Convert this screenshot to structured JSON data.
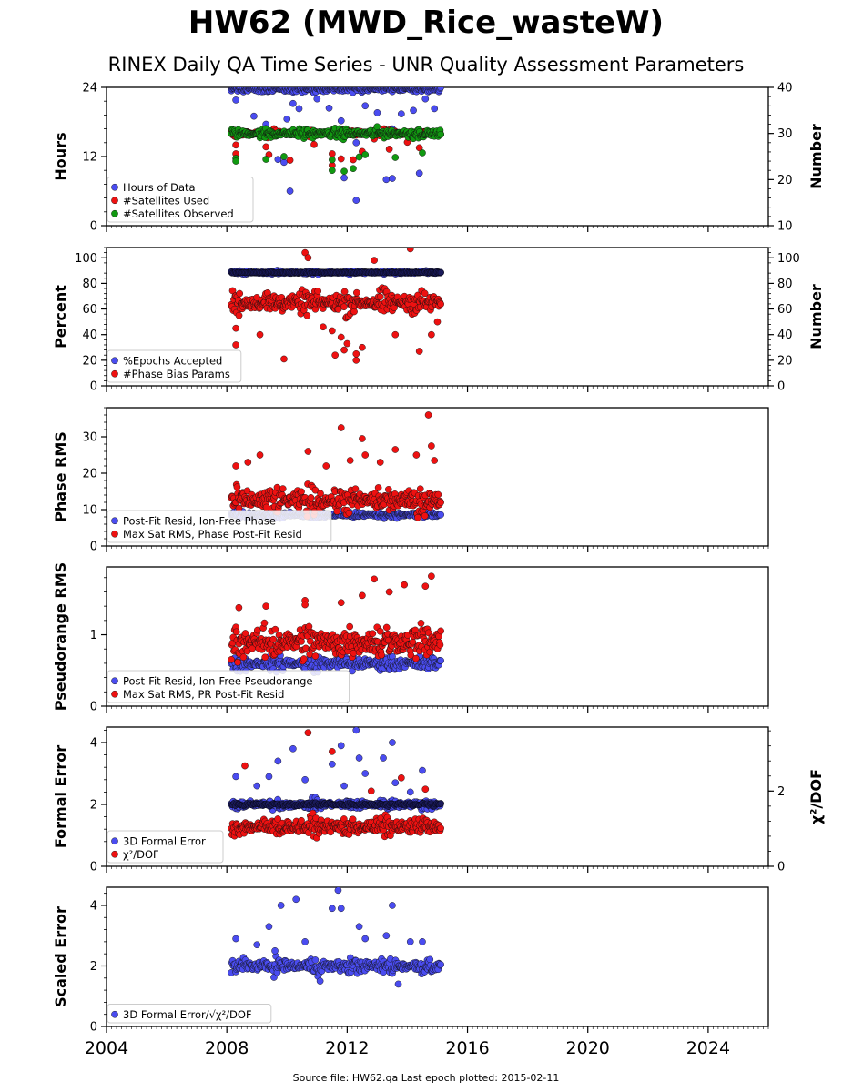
{
  "title": "HW62 (MWD_Rice_wasteW)",
  "subtitle": "RINEX Daily QA Time Series - UNR Quality Assessment Parameters",
  "footer": "Source file: HW62.qa Last epoch plotted: 2015-02-11",
  "colors": {
    "blue": "#4a4cf0",
    "red": "#ee1111",
    "green": "#119911",
    "navy": "#1a1a5a"
  },
  "chart_data": [
    {
      "type": "scatter",
      "ylabel": "Hours",
      "ylabel_right": "Number",
      "xlim": [
        2004.0,
        2026.0
      ],
      "ylim": [
        0,
        24
      ],
      "ylim_right": [
        10,
        40
      ],
      "yticks": [
        0,
        12,
        24
      ],
      "yticks_right": [
        10,
        20,
        30,
        40
      ],
      "legend_position": "lower-left",
      "series": [
        {
          "name": "Hours of Data",
          "color": "blue",
          "axis": "left",
          "base": 24,
          "spread": 0.6,
          "outliers": [
            [
              2008.3,
              21.8
            ],
            [
              2008.9,
              19.0
            ],
            [
              2009.3,
              17.6
            ],
            [
              2009.6,
              16.6
            ],
            [
              2010.0,
              18.5
            ],
            [
              2010.2,
              21.2
            ],
            [
              2010.4,
              20.3
            ],
            [
              2010.6,
              16.0
            ],
            [
              2011.0,
              22.0
            ],
            [
              2011.4,
              20.4
            ],
            [
              2011.8,
              18.2
            ],
            [
              2012.1,
              16.2
            ],
            [
              2012.3,
              14.4
            ],
            [
              2012.6,
              20.8
            ],
            [
              2013.0,
              19.6
            ],
            [
              2013.5,
              16.8
            ],
            [
              2013.8,
              19.4
            ],
            [
              2014.2,
              20.0
            ],
            [
              2014.6,
              22.0
            ],
            [
              2014.9,
              20.3
            ],
            [
              2009.7,
              11.5
            ],
            [
              2010.1,
              6.0
            ],
            [
              2012.3,
              4.4
            ],
            [
              2013.3,
              8.0
            ],
            [
              2013.5,
              8.2
            ],
            [
              2014.4,
              9.1
            ],
            [
              2011.9,
              8.3
            ],
            [
              2009.9,
              11.0
            ]
          ]
        },
        {
          "name": "#Satellites Used",
          "color": "red",
          "axis": "right",
          "base": 30,
          "spread": 0.7,
          "outliers": [
            [
              2008.3,
              25.6
            ],
            [
              2008.3,
              27.5
            ],
            [
              2009.3,
              27.1
            ],
            [
              2009.4,
              25.4
            ],
            [
              2010.1,
              24.2
            ],
            [
              2011.5,
              23.1
            ],
            [
              2011.5,
              25.6
            ],
            [
              2011.8,
              24.5
            ],
            [
              2012.2,
              24.3
            ],
            [
              2012.5,
              26.1
            ],
            [
              2013.4,
              26.6
            ],
            [
              2014.4,
              26.9
            ],
            [
              2014.0,
              28.1
            ],
            [
              2010.9,
              27.6
            ],
            [
              2012.9,
              28.8
            ]
          ]
        },
        {
          "name": "#Satellites Observed",
          "color": "green",
          "axis": "right",
          "base": 30,
          "spread": 1.0,
          "outliers": [
            [
              2008.3,
              24.6
            ],
            [
              2008.3,
              24.0
            ],
            [
              2009.3,
              24.4
            ],
            [
              2009.9,
              25.0
            ],
            [
              2011.5,
              22.0
            ],
            [
              2011.5,
              24.3
            ],
            [
              2011.9,
              21.8
            ],
            [
              2012.2,
              22.4
            ],
            [
              2012.4,
              24.9
            ],
            [
              2012.6,
              25.4
            ],
            [
              2013.6,
              24.8
            ],
            [
              2014.5,
              25.8
            ]
          ]
        }
      ]
    },
    {
      "type": "scatter",
      "ylabel": "Percent",
      "ylabel_right": "Number",
      "xlim": [
        2004.0,
        2026.0
      ],
      "ylim": [
        0,
        108
      ],
      "ylim_right": [
        0,
        108
      ],
      "yticks": [
        0,
        20,
        40,
        60,
        80,
        100
      ],
      "yticks_right": [
        0,
        20,
        40,
        60,
        80,
        100
      ],
      "legend_position": "lower-left",
      "series": [
        {
          "name": "%Epochs Accepted",
          "color": "blue",
          "axis": "left",
          "base": 88.5,
          "spread": 1.2,
          "outliers": []
        },
        {
          "name": "#Phase Bias Params",
          "color": "red",
          "axis": "right",
          "base": 65,
          "spread": 9,
          "outliers": [
            [
              2008.3,
              32
            ],
            [
              2008.3,
              45
            ],
            [
              2009.1,
              40
            ],
            [
              2009.9,
              21
            ],
            [
              2010.6,
              104
            ],
            [
              2010.7,
              100
            ],
            [
              2011.2,
              46
            ],
            [
              2011.6,
              24
            ],
            [
              2011.8,
              38
            ],
            [
              2011.9,
              28
            ],
            [
              2012.3,
              20
            ],
            [
              2012.3,
              25
            ],
            [
              2012.5,
              30
            ],
            [
              2012.9,
              98
            ],
            [
              2013.6,
              40
            ],
            [
              2014.1,
              107
            ],
            [
              2014.4,
              27
            ],
            [
              2014.8,
              40
            ],
            [
              2015.0,
              50
            ],
            [
              2012.0,
              33
            ],
            [
              2011.5,
              43
            ]
          ]
        }
      ]
    },
    {
      "type": "scatter",
      "ylabel": "Phase RMS",
      "xlim": [
        2004.0,
        2026.0
      ],
      "ylim": [
        0,
        38
      ],
      "yticks": [
        0,
        10,
        20,
        30
      ],
      "legend_position": "lower-left",
      "series": [
        {
          "name": "Post-Fit Resid, Ion-Free Phase",
          "color": "blue",
          "axis": "left",
          "base": 8.6,
          "spread": 0.9,
          "outliers": []
        },
        {
          "name": "Max Sat RMS, Phase Post-Fit Resid",
          "color": "red",
          "axis": "left",
          "base": 12.5,
          "spread": 3.5,
          "outliers": [
            [
              2008.3,
              22
            ],
            [
              2008.7,
              23
            ],
            [
              2009.1,
              25
            ],
            [
              2010.7,
              26
            ],
            [
              2011.3,
              22
            ],
            [
              2011.8,
              32.5
            ],
            [
              2012.5,
              29.5
            ],
            [
              2012.6,
              25
            ],
            [
              2013.6,
              26.5
            ],
            [
              2014.3,
              25
            ],
            [
              2014.7,
              36
            ],
            [
              2014.8,
              27.5
            ],
            [
              2014.9,
              23.5
            ],
            [
              2012.1,
              23.5
            ],
            [
              2013.1,
              23
            ]
          ]
        }
      ]
    },
    {
      "type": "scatter",
      "ylabel": "Pseudorange RMS",
      "xlim": [
        2004.0,
        2026.0
      ],
      "ylim": [
        0,
        1.95
      ],
      "yticks": [
        0,
        1
      ],
      "legend_position": "lower-left",
      "series": [
        {
          "name": "Post-Fit Resid, Ion-Free Pseudorange",
          "color": "blue",
          "axis": "left",
          "base": 0.6,
          "spread": 0.1,
          "outliers": []
        },
        {
          "name": "Max Sat RMS, PR Post-Fit Resid",
          "color": "red",
          "axis": "left",
          "base": 0.9,
          "spread": 0.25,
          "outliers": [
            [
              2012.9,
              1.78
            ],
            [
              2013.4,
              1.6
            ],
            [
              2013.9,
              1.7
            ],
            [
              2014.6,
              1.68
            ],
            [
              2014.8,
              1.82
            ],
            [
              2010.6,
              1.48
            ],
            [
              2010.6,
              1.42
            ],
            [
              2009.3,
              1.4
            ],
            [
              2008.4,
              1.38
            ],
            [
              2011.8,
              1.45
            ],
            [
              2012.5,
              1.55
            ]
          ]
        }
      ]
    },
    {
      "type": "scatter",
      "ylabel": "Formal Error",
      "ylabel_right": "χ²/DOF",
      "xlim": [
        2004.0,
        2026.0
      ],
      "ylim": [
        0,
        4.5
      ],
      "ylim_right": [
        0,
        3.7
      ],
      "yticks": [
        0,
        2,
        4
      ],
      "yticks_right": [
        0,
        2
      ],
      "legend_position": "lower-left",
      "series": [
        {
          "name": "3D Formal Error",
          "color": "blue",
          "axis": "left",
          "base": 2.0,
          "spread": 0.15,
          "outliers": [
            [
              2008.3,
              2.9
            ],
            [
              2009.0,
              2.6
            ],
            [
              2009.4,
              2.9
            ],
            [
              2009.7,
              3.4
            ],
            [
              2010.2,
              3.8
            ],
            [
              2011.5,
              3.3
            ],
            [
              2011.8,
              3.9
            ],
            [
              2012.3,
              4.4
            ],
            [
              2012.4,
              3.5
            ],
            [
              2012.6,
              3.0
            ],
            [
              2013.2,
              3.5
            ],
            [
              2013.5,
              4.0
            ],
            [
              2014.1,
              2.4
            ],
            [
              2014.5,
              3.1
            ],
            [
              2013.6,
              2.7
            ],
            [
              2010.6,
              2.8
            ],
            [
              2011.9,
              2.6
            ]
          ]
        },
        {
          "name": "χ²/DOF",
          "color": "red",
          "axis": "right",
          "base": 1.05,
          "spread": 0.25,
          "outliers": [
            [
              2010.7,
              3.55
            ],
            [
              2011.5,
              3.05
            ],
            [
              2008.6,
              2.67
            ],
            [
              2012.8,
              2.0
            ],
            [
              2013.8,
              2.35
            ],
            [
              2014.6,
              2.05
            ]
          ]
        }
      ]
    },
    {
      "type": "scatter",
      "ylabel": "Scaled Error",
      "xlim": [
        2004.0,
        2026.0
      ],
      "ylim": [
        0,
        4.6
      ],
      "yticks": [
        0,
        2,
        4
      ],
      "legend_position": "lower-left",
      "series": [
        {
          "name": "3D Formal Error/√χ²/DOF",
          "color": "blue",
          "axis": "left",
          "base": 2.0,
          "spread": 0.25,
          "outliers": [
            [
              2008.3,
              2.9
            ],
            [
              2009.0,
              2.7
            ],
            [
              2009.4,
              3.3
            ],
            [
              2009.6,
              2.5
            ],
            [
              2009.8,
              4.0
            ],
            [
              2010.3,
              4.2
            ],
            [
              2011.5,
              3.9
            ],
            [
              2011.7,
              4.5
            ],
            [
              2011.8,
              3.9
            ],
            [
              2012.4,
              3.3
            ],
            [
              2012.6,
              2.9
            ],
            [
              2013.5,
              4.0
            ],
            [
              2013.3,
              3.0
            ],
            [
              2014.1,
              2.8
            ],
            [
              2014.5,
              2.8
            ],
            [
              2010.6,
              2.8
            ],
            [
              2013.7,
              1.4
            ],
            [
              2011.1,
              1.5
            ]
          ]
        }
      ]
    }
  ],
  "x_axis": {
    "ticks": [
      2004,
      2008,
      2012,
      2016,
      2020,
      2024
    ]
  },
  "data_span": {
    "start": 2008.15,
    "end": 2015.11
  }
}
